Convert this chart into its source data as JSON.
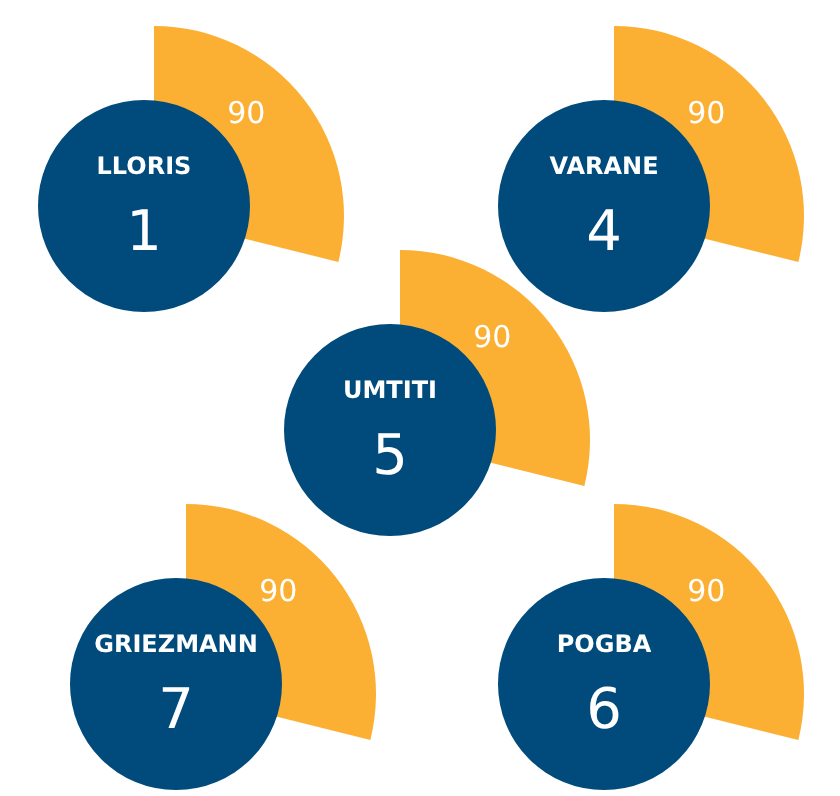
{
  "chart_data": {
    "type": "other",
    "categories": [
      "LLORIS",
      "VARANE",
      "UMTITI",
      "GRIEZMANN",
      "POGBA"
    ],
    "series": [
      {
        "color": "#fbb034",
        "values": [
          90,
          90,
          90,
          90,
          90
        ]
      }
    ],
    "data_labels": true,
    "annotations": [
      "1",
      "4",
      "5",
      "7",
      "6"
    ]
  }
}
